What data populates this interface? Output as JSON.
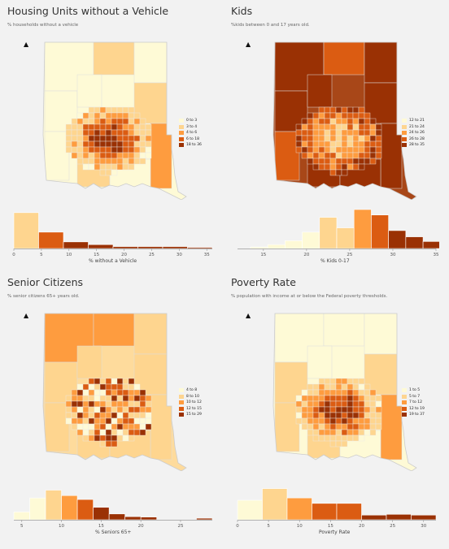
{
  "panels": [
    {
      "id": "vehicle",
      "title": "Housing Units without a Vehicle",
      "subtitle": "% households without a vehicle",
      "palette": [
        "#fefad6",
        "#fed58f",
        "#fe9c3f",
        "#db5c12",
        "#9a3104"
      ],
      "map_fill": "#fefad6",
      "map_scheme": "urban",
      "legend": [
        "0 to 3",
        "3 to 4",
        "4 to 6",
        "6 to 18",
        "18 to 36"
      ],
      "chart_data": {
        "type": "bar",
        "xlabel": "% without a Vehicle",
        "xlim": [
          0,
          36
        ],
        "xticks": [
          0,
          5,
          10,
          15,
          20,
          25,
          30,
          35
        ],
        "bins": [
          {
            "x0": 0,
            "x1": 4.5,
            "count": 0.92,
            "color": "#fed58f"
          },
          {
            "x0": 4.5,
            "x1": 9,
            "count": 0.42,
            "color": "#db5c12"
          },
          {
            "x0": 9,
            "x1": 13.5,
            "count": 0.17,
            "color": "#9a3104"
          },
          {
            "x0": 13.5,
            "x1": 18,
            "count": 0.1,
            "color": "#9a3104"
          },
          {
            "x0": 18,
            "x1": 22.5,
            "count": 0.05,
            "color": "#9a3104"
          },
          {
            "x0": 22.5,
            "x1": 27,
            "count": 0.05,
            "color": "#9a3104"
          },
          {
            "x0": 27,
            "x1": 31.5,
            "count": 0.05,
            "color": "#9a3104"
          },
          {
            "x0": 31.5,
            "x1": 36,
            "count": 0.03,
            "color": "#9a3104"
          }
        ]
      }
    },
    {
      "id": "kids",
      "title": "Kids",
      "subtitle": "%kids between 0 and 17 years old.",
      "palette": [
        "#fefad6",
        "#fed58f",
        "#fe9c3f",
        "#db5c12",
        "#9a3104"
      ],
      "map_fill": "#a84718",
      "map_scheme": "inverse",
      "legend": [
        "12 to 21",
        "21 to 24",
        "24 to 26",
        "26 to 28",
        "28 to 35"
      ],
      "chart_data": {
        "type": "bar",
        "xlabel": "% Kids 0-17",
        "xlim": [
          12,
          35
        ],
        "xticks": [
          15,
          20,
          25,
          30,
          35
        ],
        "bins": [
          {
            "x0": 13.5,
            "x1": 15.5,
            "count": 0.04,
            "color": "#fefad6"
          },
          {
            "x0": 15.5,
            "x1": 17.5,
            "count": 0.1,
            "color": "#fefad6"
          },
          {
            "x0": 17.5,
            "x1": 19.5,
            "count": 0.2,
            "color": "#fefad6"
          },
          {
            "x0": 19.5,
            "x1": 21.5,
            "count": 0.42,
            "color": "#fefad6"
          },
          {
            "x0": 21.5,
            "x1": 23.5,
            "count": 0.8,
            "color": "#fed58f"
          },
          {
            "x0": 23.5,
            "x1": 25.5,
            "count": 0.53,
            "color": "#fed58f"
          },
          {
            "x0": 25.5,
            "x1": 27.5,
            "count": 1.0,
            "color": "#fe9c3f"
          },
          {
            "x0": 27.5,
            "x1": 29.5,
            "count": 0.86,
            "color": "#db5c12"
          },
          {
            "x0": 29.5,
            "x1": 31.5,
            "count": 0.46,
            "color": "#9a3104"
          },
          {
            "x0": 31.5,
            "x1": 33.5,
            "count": 0.3,
            "color": "#9a3104"
          },
          {
            "x0": 33.5,
            "x1": 35.5,
            "count": 0.18,
            "color": "#9a3104"
          }
        ]
      }
    },
    {
      "id": "seniors",
      "title": "Senior Citizens",
      "subtitle": "% senior citizens 65+ years old.",
      "palette": [
        "#fefad6",
        "#fed58f",
        "#fe9c3f",
        "#db5c12",
        "#9a3104"
      ],
      "map_fill": "#fedb9c",
      "map_scheme": "mixed",
      "legend": [
        "4 to 8",
        "8 to 10",
        "10 to 12",
        "12 to 15",
        "15 to 29"
      ],
      "chart_data": {
        "type": "bar",
        "xlabel": "% Seniors 65+",
        "xlim": [
          4,
          29
        ],
        "xticks": [
          5,
          10,
          15,
          20,
          25
        ],
        "bins": [
          {
            "x0": 4,
            "x1": 6,
            "count": 0.2,
            "color": "#fefad6"
          },
          {
            "x0": 6,
            "x1": 8,
            "count": 0.56,
            "color": "#fefad6"
          },
          {
            "x0": 8,
            "x1": 10,
            "count": 0.76,
            "color": "#fed58f"
          },
          {
            "x0": 10,
            "x1": 12,
            "count": 0.62,
            "color": "#fe9c3f"
          },
          {
            "x0": 12,
            "x1": 14,
            "count": 0.52,
            "color": "#db5c12"
          },
          {
            "x0": 14,
            "x1": 16,
            "count": 0.32,
            "color": "#9a3104"
          },
          {
            "x0": 16,
            "x1": 18,
            "count": 0.15,
            "color": "#9a3104"
          },
          {
            "x0": 18,
            "x1": 20,
            "count": 0.08,
            "color": "#9a3104"
          },
          {
            "x0": 20,
            "x1": 22,
            "count": 0.07,
            "color": "#9a3104"
          },
          {
            "x0": 27,
            "x1": 29,
            "count": 0.04,
            "color": "#9a3104"
          }
        ]
      }
    },
    {
      "id": "poverty",
      "title": "Poverty Rate",
      "subtitle": "% population with income at or below the Federal poverty thresholds.",
      "palette": [
        "#fefad6",
        "#fed58f",
        "#fe9c3f",
        "#db5c12",
        "#9a3104"
      ],
      "map_fill": "#fefad6",
      "map_scheme": "urban",
      "legend": [
        "1 to 5",
        "5 to 7",
        "7 to 12",
        "12 to 19",
        "19 to 37"
      ],
      "chart_data": {
        "type": "bar",
        "xlabel": "Poverty Rate",
        "xlim": [
          0,
          32
        ],
        "xticks": [
          0,
          5,
          10,
          15,
          20,
          25,
          30
        ],
        "bins": [
          {
            "x0": 0,
            "x1": 4,
            "count": 0.5,
            "color": "#fefad6"
          },
          {
            "x0": 4,
            "x1": 8,
            "count": 0.8,
            "color": "#fed58f"
          },
          {
            "x0": 8,
            "x1": 12,
            "count": 0.56,
            "color": "#fe9c3f"
          },
          {
            "x0": 12,
            "x1": 16,
            "count": 0.42,
            "color": "#db5c12"
          },
          {
            "x0": 16,
            "x1": 20,
            "count": 0.42,
            "color": "#db5c12"
          },
          {
            "x0": 20,
            "x1": 24,
            "count": 0.12,
            "color": "#9a3104"
          },
          {
            "x0": 24,
            "x1": 28,
            "count": 0.14,
            "color": "#9a3104"
          },
          {
            "x0": 28,
            "x1": 32,
            "count": 0.12,
            "color": "#9a3104"
          }
        ]
      }
    }
  ],
  "north_arrow": "▲"
}
